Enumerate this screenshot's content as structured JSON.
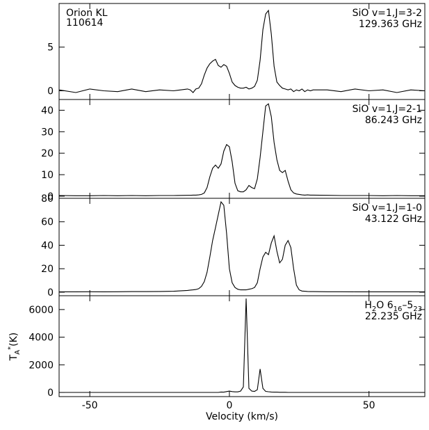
{
  "chart_data": [
    {
      "type": "line",
      "x_label": "Velocity (km/s)",
      "y_label": [
        "T",
        "A",
        "*",
        "(K)"
      ],
      "notes_left": [
        "Orion KL",
        "110614"
      ],
      "notes_right": [
        "SiO v=1,J=3-2",
        "129.363 GHz"
      ],
      "xlim": [
        -61,
        70
      ],
      "xticks": [
        -50,
        0,
        50
      ],
      "ylim": [
        -1,
        10
      ],
      "yticks": [
        0,
        5
      ],
      "color": "#000000",
      "x": [
        -61,
        -55,
        -50,
        -45,
        -40,
        -35,
        -30,
        -25,
        -20,
        -15,
        -14,
        -13,
        -12,
        -11,
        -10,
        -9,
        -8,
        -7,
        -6,
        -5,
        -4,
        -3,
        -2,
        -1,
        0,
        1,
        2,
        3,
        4,
        5,
        6,
        7,
        8,
        9,
        10,
        11,
        12,
        13,
        14,
        15,
        16,
        17,
        18,
        19,
        20,
        21,
        22,
        23,
        24,
        25,
        26,
        27,
        28,
        29,
        30,
        35,
        40,
        45,
        50,
        55,
        60,
        65,
        70
      ],
      "values": [
        0.1,
        -0.2,
        0.2,
        0,
        -0.1,
        0.2,
        -0.1,
        0.1,
        0,
        0.2,
        0.1,
        -0.2,
        0.2,
        0.3,
        0.8,
        1.8,
        2.6,
        3.1,
        3.4,
        3.6,
        2.9,
        2.7,
        3.0,
        2.8,
        2.0,
        1.0,
        0.6,
        0.4,
        0.3,
        0.3,
        0.4,
        0.2,
        0.3,
        0.5,
        1.2,
        3.5,
        7.0,
        8.8,
        9.2,
        6.5,
        2.8,
        1.0,
        0.6,
        0.3,
        0.2,
        0.1,
        0.2,
        -0.1,
        0.1,
        0,
        0.2,
        -0.1,
        0.1,
        0,
        0.1,
        0.1,
        -0.1,
        0.2,
        0,
        0.1,
        -0.2,
        0.1,
        0
      ]
    },
    {
      "type": "line",
      "notes_right": [
        "SiO v=1,J=2-1",
        "86.243 GHz"
      ],
      "xlim": [
        -61,
        70
      ],
      "xticks": [
        -50,
        0,
        50
      ],
      "ylim": [
        -1,
        45
      ],
      "yticks": [
        0,
        10,
        20,
        30,
        40
      ],
      "color": "#000000",
      "x": [
        -61,
        -55,
        -50,
        -45,
        -40,
        -35,
        -30,
        -25,
        -20,
        -15,
        -14,
        -13,
        -12,
        -11,
        -10,
        -9,
        -8,
        -7,
        -6,
        -5,
        -4,
        -3,
        -2,
        -1,
        0,
        1,
        2,
        3,
        4,
        5,
        6,
        7,
        8,
        9,
        10,
        11,
        12,
        13,
        14,
        15,
        16,
        17,
        18,
        19,
        20,
        21,
        22,
        23,
        24,
        25,
        26,
        27,
        28,
        29,
        30,
        35,
        40,
        45,
        50,
        55,
        60,
        65,
        70
      ],
      "values": [
        0.3,
        0.2,
        0.2,
        0.3,
        0.2,
        0.3,
        0.2,
        0.3,
        0.3,
        0.4,
        0.4,
        0.5,
        0.5,
        0.6,
        0.8,
        1.5,
        4,
        9,
        13,
        14.5,
        13,
        15,
        21,
        24,
        23,
        16,
        6,
        2.5,
        2,
        2,
        3,
        5,
        4,
        3.5,
        8,
        18,
        30,
        42,
        43,
        37,
        25,
        17,
        12,
        11,
        12,
        7,
        3,
        1.5,
        1,
        0.8,
        0.6,
        0.5,
        0.6,
        0.5,
        0.5,
        0.4,
        0.3,
        0.3,
        0.3,
        0.2,
        0.3,
        0.2,
        0.2
      ]
    },
    {
      "type": "line",
      "notes_right": [
        "SiO v=1,J=1-0",
        "43.122 GHz"
      ],
      "xlim": [
        -61,
        70
      ],
      "xticks": [
        -50,
        0,
        50
      ],
      "ylim": [
        -3,
        80
      ],
      "yticks": [
        0,
        20,
        40,
        60,
        80
      ],
      "color": "#000000",
      "x": [
        -61,
        -55,
        -50,
        -45,
        -40,
        -35,
        -30,
        -25,
        -20,
        -15,
        -14,
        -13,
        -12,
        -11,
        -10,
        -9,
        -8,
        -7,
        -6,
        -5,
        -4,
        -3,
        -2,
        -1,
        0,
        1,
        2,
        3,
        4,
        5,
        6,
        7,
        8,
        9,
        10,
        11,
        12,
        13,
        14,
        15,
        16,
        17,
        18,
        19,
        20,
        21,
        22,
        23,
        24,
        25,
        26,
        27,
        28,
        29,
        30,
        35,
        40,
        45,
        50,
        55,
        60,
        65,
        70
      ],
      "values": [
        0.3,
        0.3,
        0.4,
        0.3,
        0.4,
        0.5,
        0.5,
        0.6,
        0.8,
        1.5,
        1.8,
        2,
        2.3,
        3,
        5,
        9,
        17,
        30,
        44,
        55,
        66,
        77,
        74,
        50,
        20,
        8,
        4,
        2.5,
        2,
        2,
        2,
        2.5,
        3,
        4,
        8,
        20,
        30,
        34,
        32,
        42,
        48,
        35,
        25,
        28,
        40,
        44,
        38,
        20,
        6,
        2,
        1,
        0.8,
        0.6,
        0.5,
        0.5,
        0.4,
        0.4,
        0.3,
        0.3,
        0.3,
        0.3,
        0.3,
        0.3
      ]
    },
    {
      "type": "line",
      "notes_right": [
        [
          "H",
          "2",
          "O 6",
          "16",
          "–5",
          "23"
        ],
        "22.235 GHz"
      ],
      "xlim": [
        -61,
        70
      ],
      "xticks": [
        -50,
        0,
        50
      ],
      "ylim": [
        -300,
        7000
      ],
      "yticks": [
        0,
        2000,
        4000,
        6000
      ],
      "color": "#000000",
      "x": [
        -61,
        -55,
        -50,
        -45,
        -40,
        -35,
        -30,
        -25,
        -20,
        -15,
        -14,
        -13,
        -12,
        -11,
        -10,
        -9,
        -8,
        -7,
        -6,
        -5,
        -4,
        -3,
        -2,
        -1,
        0,
        1,
        2,
        3,
        4,
        5,
        6,
        7,
        8,
        9,
        10,
        11,
        12,
        13,
        14,
        15,
        16,
        17,
        18,
        19,
        20,
        21,
        22,
        23,
        24,
        25,
        26,
        27,
        28,
        29,
        30,
        35,
        40,
        45,
        50,
        55,
        60,
        65,
        70
      ],
      "values": [
        0,
        0,
        0,
        0,
        0,
        0,
        0,
        0,
        0,
        0,
        0,
        0,
        0,
        0,
        0,
        0,
        0,
        0,
        0,
        0,
        0,
        30,
        20,
        60,
        100,
        60,
        40,
        40,
        100,
        400,
        6800,
        300,
        100,
        80,
        200,
        1700,
        300,
        80,
        50,
        30,
        20,
        20,
        10,
        10,
        10,
        0,
        0,
        0,
        0,
        0,
        0,
        0,
        0,
        0,
        0,
        0,
        0,
        0,
        0,
        0,
        0,
        0,
        0
      ]
    }
  ]
}
